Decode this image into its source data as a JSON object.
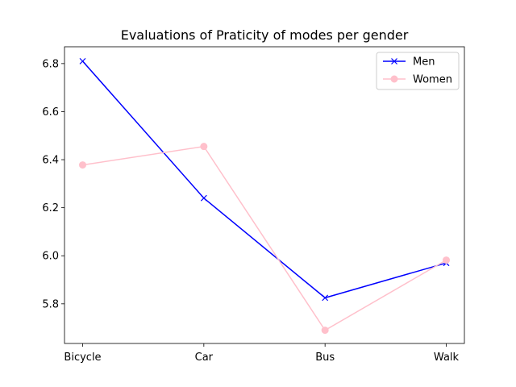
{
  "chart_data": {
    "type": "line",
    "title": "Evaluations of Praticity of modes per gender",
    "xlabel": "",
    "ylabel": "",
    "categories": [
      "Bicycle",
      "Car",
      "Bus",
      "Walk"
    ],
    "ylim": [
      5.635,
      6.87
    ],
    "yticks": [
      5.8,
      6.0,
      6.2,
      6.4,
      6.6,
      6.8
    ],
    "ytick_labels": [
      "5.8",
      "6.0",
      "6.2",
      "6.4",
      "6.6",
      "6.8"
    ],
    "series": [
      {
        "name": "Men",
        "values": [
          6.81,
          6.24,
          5.825,
          5.97
        ],
        "color": "#0000ff",
        "marker": "x"
      },
      {
        "name": "Women",
        "values": [
          6.378,
          6.455,
          5.69,
          5.982
        ],
        "color": "#ffc0cb",
        "marker": "circle"
      }
    ],
    "legend_position": "top-right"
  }
}
